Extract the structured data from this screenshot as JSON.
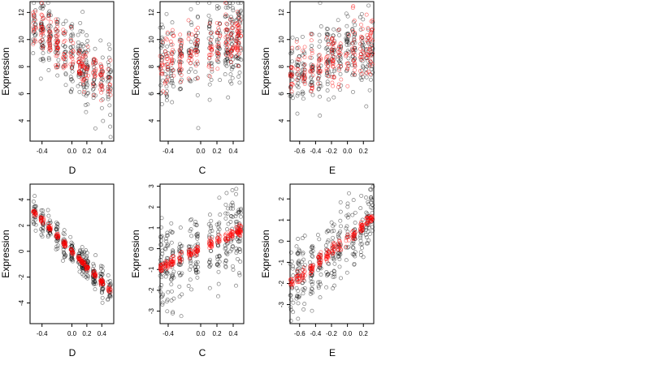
{
  "chart_data": [
    {
      "type": "scatter",
      "xlabel": "D",
      "ylabel": "Expression",
      "xlim": [
        -0.56,
        0.56
      ],
      "ylim": [
        2.5,
        12.8
      ],
      "xticks": [
        -0.4,
        0.0,
        0.2,
        0.4
      ],
      "xtick_labels": [
        "-0.4",
        "0.0",
        "0.2",
        "0.4"
      ],
      "yticks": [
        4,
        6,
        8,
        10,
        12
      ],
      "ytick_labels": [
        "4",
        "6",
        "8",
        "10",
        "12"
      ],
      "x_groups": [
        -0.5,
        -0.4,
        -0.3,
        -0.2,
        -0.1,
        0.0,
        0.1,
        0.15,
        0.2,
        0.3,
        0.4,
        0.5
      ],
      "fit": {
        "slope": -4.4,
        "intercept": 8.8,
        "noise": 1.3
      },
      "series": [
        {
          "role": "observed",
          "color": "#000000",
          "count": 300,
          "spread": 1.3
        },
        {
          "role": "fitted",
          "color": "#ff0000",
          "count": 200,
          "spread": 0.8
        }
      ],
      "grid": false
    },
    {
      "type": "scatter",
      "xlabel": "C",
      "ylabel": "Expression",
      "xlim": [
        -0.5,
        0.53
      ],
      "ylim": [
        2.5,
        12.8
      ],
      "xticks": [
        -0.4,
        0.0,
        0.2,
        0.4
      ],
      "xtick_labels": [
        "-0.4",
        "0.0",
        "0.2",
        "0.4"
      ],
      "yticks": [
        4,
        6,
        8,
        10,
        12
      ],
      "ytick_labels": [
        "4",
        "6",
        "8",
        "10",
        "12"
      ],
      "x_groups": [
        -0.48,
        -0.42,
        -0.35,
        -0.25,
        -0.13,
        -0.05,
        0.12,
        0.22,
        0.32,
        0.38,
        0.45,
        0.48
      ],
      "fit": {
        "slope": 2.0,
        "intercept": 9.2,
        "noise": 1.5
      },
      "series": [
        {
          "role": "observed",
          "color": "#000000",
          "count": 300,
          "spread": 1.6
        },
        {
          "role": "fitted",
          "color": "#ff0000",
          "count": 200,
          "spread": 1.0
        }
      ],
      "grid": false
    },
    {
      "type": "scatter",
      "xlabel": "E",
      "ylabel": "Expression",
      "xlim": [
        -0.72,
        0.33
      ],
      "ylim": [
        2.5,
        12.8
      ],
      "xticks": [
        -0.6,
        -0.4,
        -0.2,
        0.0,
        0.2
      ],
      "xtick_labels": [
        "-0.6",
        "-0.4",
        "-0.2",
        "0.0",
        "0.2"
      ],
      "yticks": [
        4,
        6,
        8,
        10,
        12
      ],
      "ytick_labels": [
        "4",
        "6",
        "8",
        "10",
        "12"
      ],
      "x_groups": [
        -0.7,
        -0.62,
        -0.55,
        -0.45,
        -0.35,
        -0.25,
        -0.18,
        -0.1,
        0.0,
        0.08,
        0.18,
        0.25,
        0.3
      ],
      "fit": {
        "slope": 2.5,
        "intercept": 9.0,
        "noise": 1.4
      },
      "series": [
        {
          "role": "observed",
          "color": "#000000",
          "count": 300,
          "spread": 1.4
        },
        {
          "role": "fitted",
          "color": "#ff0000",
          "count": 200,
          "spread": 1.0
        }
      ],
      "grid": false
    },
    {
      "type": "scatter",
      "xlabel": "D",
      "ylabel": "Expression",
      "xlim": [
        -0.56,
        0.56
      ],
      "ylim": [
        -5.6,
        5.2
      ],
      "xticks": [
        -0.4,
        0.0,
        0.2,
        0.4
      ],
      "xtick_labels": [
        "-0.4",
        "0.0",
        "0.2",
        "0.4"
      ],
      "yticks": [
        -4,
        -2,
        0,
        2,
        4
      ],
      "ytick_labels": [
        "-4",
        "-2",
        "0",
        "2",
        "4"
      ],
      "x_groups": [
        -0.5,
        -0.4,
        -0.3,
        -0.2,
        -0.1,
        0.0,
        0.1,
        0.15,
        0.2,
        0.3,
        0.4,
        0.5
      ],
      "fit": {
        "slope": -6.0,
        "intercept": 0.0,
        "noise": 0.6
      },
      "series": [
        {
          "role": "observed",
          "color": "#000000",
          "count": 300,
          "spread": 0.6
        },
        {
          "role": "fitted",
          "color": "#ff0000",
          "count": 200,
          "spread": 0.12
        }
      ],
      "grid": false
    },
    {
      "type": "scatter",
      "xlabel": "C",
      "ylabel": "Expression",
      "xlim": [
        -0.5,
        0.53
      ],
      "ylim": [
        -3.6,
        3.1
      ],
      "xticks": [
        -0.4,
        0.0,
        0.2,
        0.4
      ],
      "xtick_labels": [
        "-0.4",
        "0.0",
        "0.2",
        "0.4"
      ],
      "yticks": [
        -3,
        -2,
        -1,
        0,
        1,
        2,
        3
      ],
      "ytick_labels": [
        "-3",
        "-2",
        "-1",
        "0",
        "1",
        "2",
        "3"
      ],
      "x_groups": [
        -0.48,
        -0.42,
        -0.35,
        -0.25,
        -0.13,
        -0.05,
        0.12,
        0.22,
        0.32,
        0.38,
        0.45,
        0.48
      ],
      "fit": {
        "slope": 1.8,
        "intercept": 0.0,
        "noise": 1.0
      },
      "series": [
        {
          "role": "observed",
          "color": "#000000",
          "count": 300,
          "spread": 1.0
        },
        {
          "role": "fitted",
          "color": "#ff0000",
          "count": 200,
          "spread": 0.12
        }
      ],
      "grid": false
    },
    {
      "type": "scatter",
      "xlabel": "E",
      "ylabel": "Expression",
      "xlim": [
        -0.72,
        0.33
      ],
      "ylim": [
        -3.9,
        2.7
      ],
      "xticks": [
        -0.6,
        -0.4,
        -0.2,
        0.0,
        0.2
      ],
      "xtick_labels": [
        "-0.6",
        "-0.4",
        "-0.2",
        "0.0",
        "0.2"
      ],
      "yticks": [
        -3,
        -2,
        -1,
        0,
        1,
        2
      ],
      "ytick_labels": [
        "-3",
        "-2",
        "-1",
        "0",
        "1",
        "2"
      ],
      "x_groups": [
        -0.7,
        -0.62,
        -0.55,
        -0.45,
        -0.35,
        -0.25,
        -0.18,
        -0.1,
        0.0,
        0.08,
        0.18,
        0.25,
        0.3
      ],
      "fit": {
        "slope": 3.0,
        "intercept": 0.1,
        "noise": 0.9
      },
      "series": [
        {
          "role": "observed",
          "color": "#000000",
          "count": 300,
          "spread": 0.9
        },
        {
          "role": "fitted",
          "color": "#ff0000",
          "count": 200,
          "spread": 0.15
        }
      ],
      "grid": false
    }
  ]
}
